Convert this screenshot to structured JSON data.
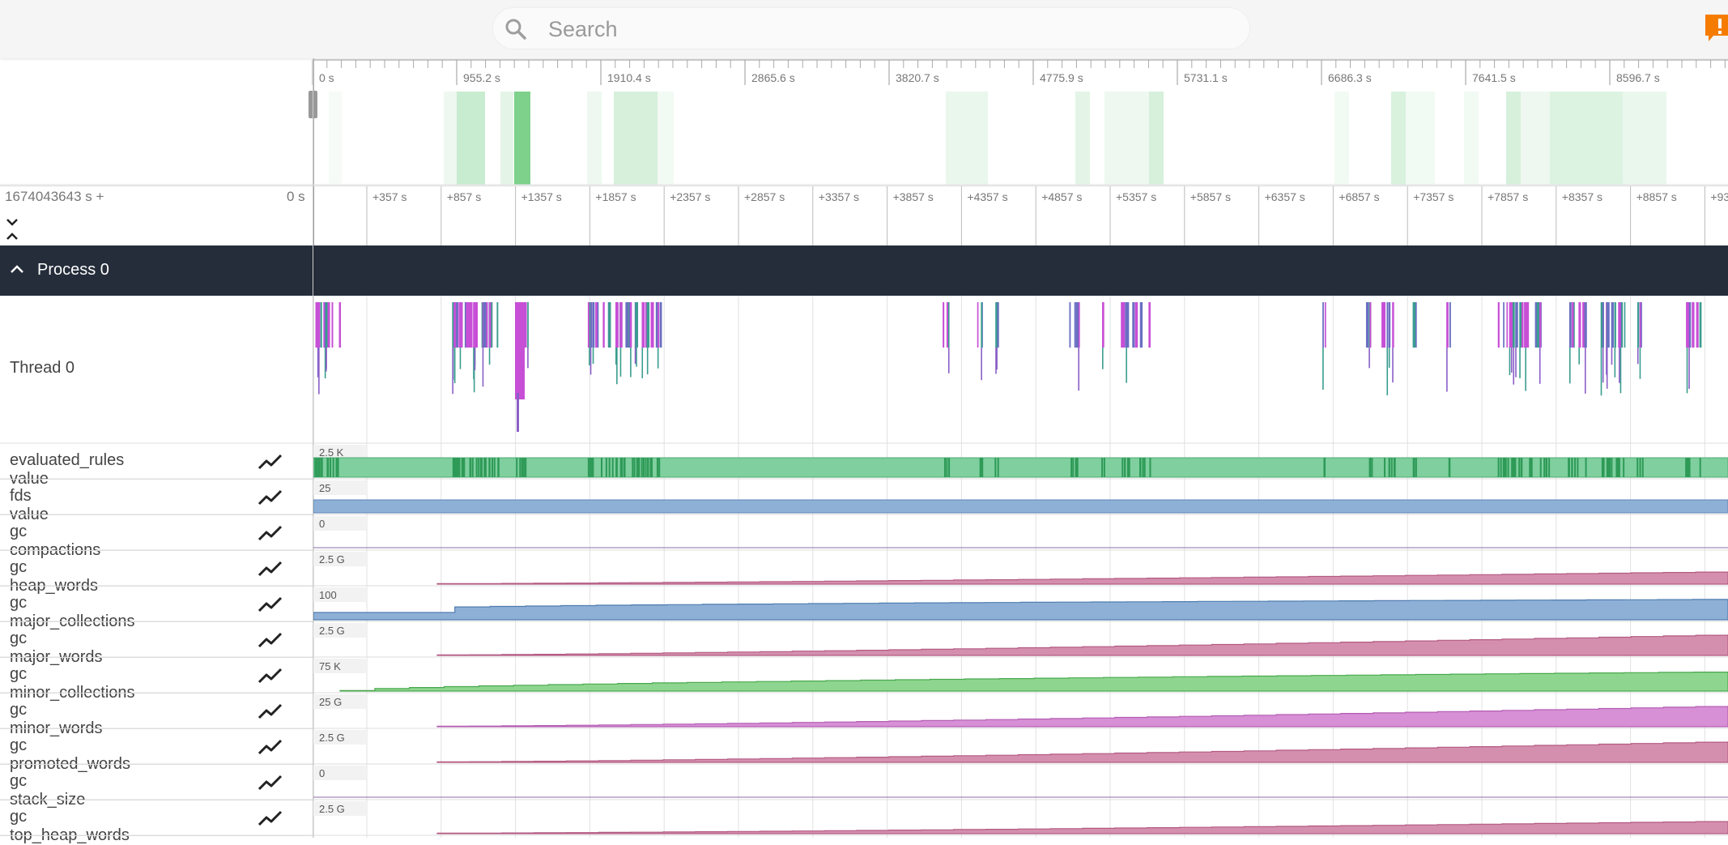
{
  "search": {
    "placeholder": "Search"
  },
  "overview": {
    "ticks": [
      "0 s",
      "955.2 s",
      "1910.4 s",
      "2865.6 s",
      "3820.7 s",
      "4775.9 s",
      "5731.1 s",
      "6686.3 s",
      "7641.5 s",
      "8596.7 s"
    ]
  },
  "timeline": {
    "offset_label": "1674043643 s +",
    "zero_label": "0 s",
    "ticks": [
      "+357 s",
      "+857 s",
      "+1357 s",
      "+1857 s",
      "+2357 s",
      "+2857 s",
      "+3357 s",
      "+3857 s",
      "+4357 s",
      "+4857 s",
      "+5357 s",
      "+5857 s",
      "+6357 s",
      "+6857 s",
      "+7357 s",
      "+7857 s",
      "+8357 s",
      "+8857 s",
      "+93"
    ]
  },
  "process": {
    "title": "Process 0"
  },
  "thread": {
    "label": "Thread 0"
  },
  "tracks": [
    {
      "label": "evaluated_rules value",
      "scale": "2.5 K",
      "color": "#7fcf9f"
    },
    {
      "label": "fds value",
      "scale": "25",
      "color": "#8fb0d6"
    },
    {
      "label": "gc compactions",
      "scale": "0",
      "color": "#b394c7"
    },
    {
      "label": "gc heap_words",
      "scale": "2.5 G",
      "color": "#d48fae"
    },
    {
      "label": "gc major_collections",
      "scale": "100",
      "color": "#8fb0d6"
    },
    {
      "label": "gc major_words",
      "scale": "2.5 G",
      "color": "#d48fae"
    },
    {
      "label": "gc minor_collections",
      "scale": "75 K",
      "color": "#8ed68f"
    },
    {
      "label": "gc minor_words",
      "scale": "25 G",
      "color": "#d78fd6"
    },
    {
      "label": "gc promoted_words",
      "scale": "2.5 G",
      "color": "#d48fae"
    },
    {
      "label": "gc stack_size",
      "scale": "0",
      "color": "#b394c7"
    },
    {
      "label": "gc top_heap_words",
      "scale": "2.5 G",
      "color": "#d48fae"
    }
  ]
}
